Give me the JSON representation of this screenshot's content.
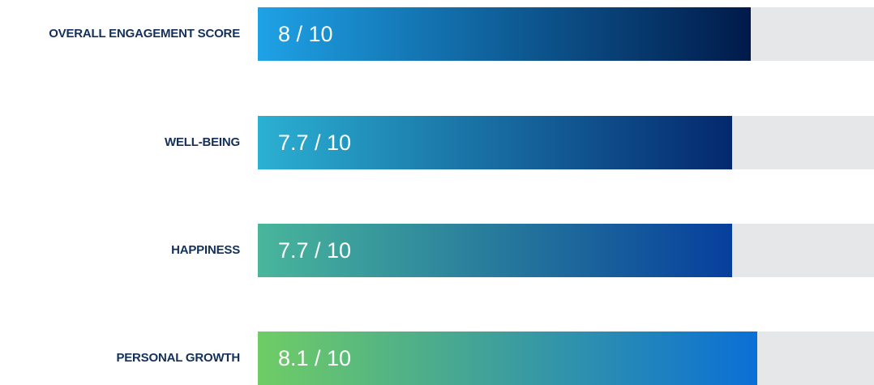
{
  "chart_data": {
    "type": "bar",
    "orientation": "horizontal",
    "categories": [
      "OVERALL ENGAGEMENT SCORE",
      "WELL-BEING",
      "HAPPINESS",
      "PERSONAL GROWTH"
    ],
    "values": [
      8,
      7.7,
      7.7,
      8.1
    ],
    "value_labels": [
      "8 / 10",
      "7.7 / 10",
      "7.7 / 10",
      "8.1 / 10"
    ],
    "xlim": [
      0,
      10
    ],
    "grid": false,
    "legend": "none",
    "colors": {
      "label_text": "#14305a",
      "value_text": "#ffffff",
      "track": "#e6e7e9",
      "bar_gradients": [
        [
          "#1ea2e6",
          "#001a4a"
        ],
        [
          "#2bb0d2",
          "#04286e"
        ],
        [
          "#49b69b",
          "#063f9d"
        ],
        [
          "#6fcd65",
          "#0a6fd6"
        ]
      ]
    }
  }
}
